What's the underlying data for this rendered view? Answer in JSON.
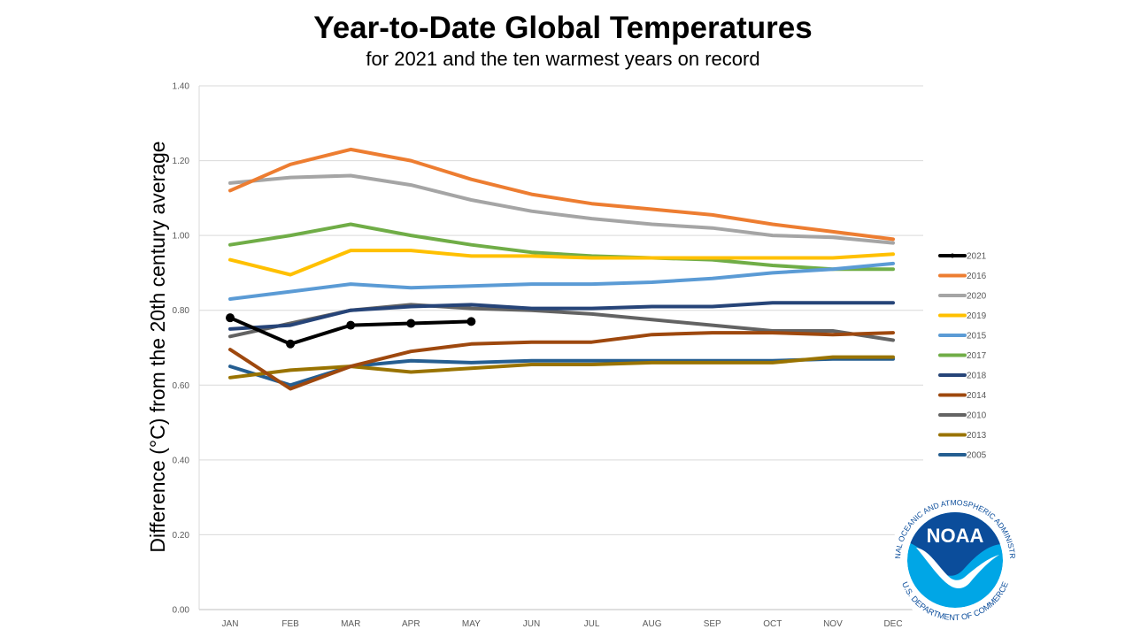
{
  "chart_data": {
    "type": "line",
    "title": "Year-to-Date Global Temperatures",
    "subtitle": "for 2021 and the ten warmest years on record",
    "xlabel": "",
    "ylabel": "Difference (°C) from the 20th century average",
    "ylim": [
      0,
      1.4
    ],
    "yticks": [
      "0.00",
      "0.20",
      "0.40",
      "0.60",
      "0.80",
      "1.00",
      "1.20",
      "1.40"
    ],
    "ytick_values": [
      0,
      0.2,
      0.4,
      0.6,
      0.8,
      1.0,
      1.2,
      1.4
    ],
    "grid": true,
    "legend_position": "right",
    "categories": [
      "JAN",
      "FEB",
      "MAR",
      "APR",
      "MAY",
      "JUN",
      "JUL",
      "AUG",
      "SEP",
      "OCT",
      "NOV",
      "DEC"
    ],
    "series": [
      {
        "name": "2021",
        "color": "#000000",
        "markers": true,
        "values": [
          0.78,
          0.71,
          0.76,
          0.765,
          0.77
        ]
      },
      {
        "name": "2016",
        "color": "#ED7D31",
        "markers": false,
        "values": [
          1.12,
          1.19,
          1.23,
          1.2,
          1.15,
          1.11,
          1.085,
          1.07,
          1.055,
          1.03,
          1.01,
          0.99
        ]
      },
      {
        "name": "2020",
        "color": "#A5A5A5",
        "markers": false,
        "values": [
          1.14,
          1.155,
          1.16,
          1.135,
          1.095,
          1.065,
          1.045,
          1.03,
          1.02,
          1.0,
          0.995,
          0.98
        ]
      },
      {
        "name": "2019",
        "color": "#FFC000",
        "markers": false,
        "values": [
          0.935,
          0.895,
          0.96,
          0.96,
          0.945,
          0.945,
          0.94,
          0.94,
          0.94,
          0.94,
          0.94,
          0.95
        ]
      },
      {
        "name": "2015",
        "color": "#5B9BD5",
        "markers": false,
        "values": [
          0.83,
          0.85,
          0.87,
          0.86,
          0.865,
          0.87,
          0.87,
          0.875,
          0.885,
          0.9,
          0.91,
          0.925
        ]
      },
      {
        "name": "2017",
        "color": "#70AD47",
        "markers": false,
        "values": [
          0.975,
          1.0,
          1.03,
          1.0,
          0.975,
          0.955,
          0.945,
          0.94,
          0.935,
          0.92,
          0.91,
          0.91
        ]
      },
      {
        "name": "2018",
        "color": "#264478",
        "markers": false,
        "values": [
          0.75,
          0.76,
          0.8,
          0.81,
          0.815,
          0.805,
          0.805,
          0.81,
          0.81,
          0.82,
          0.82,
          0.82
        ]
      },
      {
        "name": "2014",
        "color": "#9E480E",
        "markers": false,
        "values": [
          0.695,
          0.59,
          0.65,
          0.69,
          0.71,
          0.715,
          0.715,
          0.735,
          0.74,
          0.74,
          0.735,
          0.74
        ]
      },
      {
        "name": "2010",
        "color": "#636363",
        "markers": false,
        "values": [
          0.73,
          0.765,
          0.8,
          0.815,
          0.805,
          0.8,
          0.79,
          0.775,
          0.76,
          0.745,
          0.745,
          0.72
        ]
      },
      {
        "name": "2013",
        "color": "#997300",
        "markers": false,
        "values": [
          0.62,
          0.64,
          0.65,
          0.635,
          0.645,
          0.655,
          0.655,
          0.66,
          0.66,
          0.66,
          0.675,
          0.675
        ]
      },
      {
        "name": "2005",
        "color": "#255E91",
        "markers": false,
        "values": [
          0.65,
          0.6,
          0.65,
          0.665,
          0.66,
          0.665,
          0.665,
          0.665,
          0.665,
          0.665,
          0.67,
          0.67
        ]
      }
    ]
  },
  "logo": {
    "name": "NOAA",
    "ring_text_top": "NATIONAL OCEANIC AND ATMOSPHERIC ADMINISTRATION",
    "ring_text_bottom": "U.S. DEPARTMENT OF COMMERCE",
    "colors": {
      "dark": "#0B4D9B",
      "light": "#00A6E6"
    }
  }
}
